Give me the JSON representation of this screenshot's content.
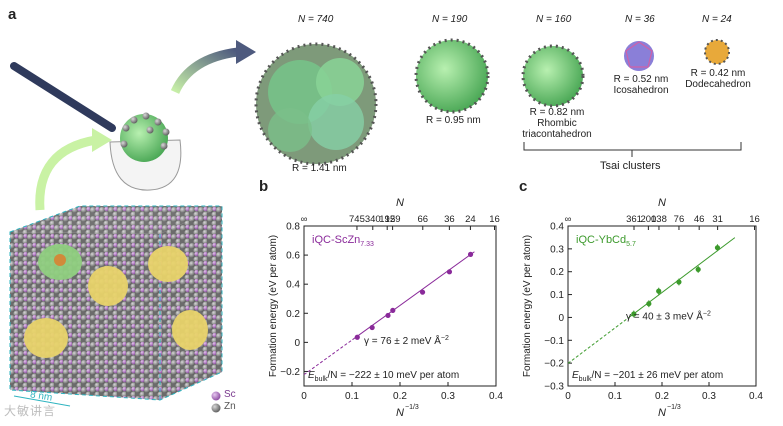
{
  "figure": {
    "panels": [
      "a",
      "b",
      "c"
    ],
    "colors": {
      "sc_atom": "#b27bc4",
      "zn_atom": "#7d7d7d",
      "cluster_green": "#5fc46b",
      "icosa_blue": "#7b87d8",
      "dodeca_orange": "#e8a93a",
      "purple_fit": "#8a2a9a",
      "green_fit": "#3c9a2c",
      "yellow_domain": "#e8d36a"
    }
  },
  "panel_a": {
    "clusters": [
      {
        "n_label": "N = 740",
        "r_label": "R = 1.41 nm"
      },
      {
        "n_label": "N = 190",
        "r_label": "R = 0.95 nm"
      },
      {
        "n_label": "N = 160",
        "r_label": "R = 0.82 nm",
        "name_lines": [
          "Rhombic",
          "triacontahedron"
        ]
      },
      {
        "n_label": "N = 36",
        "r_label": "R = 0.52 nm",
        "name_lines": [
          "Icosahedron"
        ]
      },
      {
        "n_label": "N = 24",
        "r_label": "R = 0.42 nm",
        "name_lines": [
          "Dodecahedron"
        ]
      }
    ],
    "tsai_label": "Tsai clusters",
    "scale_label": "8 nm",
    "legend": [
      {
        "label": "Sc"
      },
      {
        "label": "Zn"
      }
    ],
    "watermark": "大敏讲言"
  },
  "chart_data": [
    {
      "type": "scatter",
      "panel": "b",
      "title": "",
      "series_label": "iQC-ScZn",
      "series_sub": "7.33",
      "top_axis_label": "N",
      "top_ticks": [
        "∞",
        "745",
        "340",
        "192",
        "159",
        "66",
        "36",
        "24",
        "16"
      ],
      "xlabel": "N",
      "xlabel_exp": "−1/3",
      "ylabel": "Formation energy (eV per atom)",
      "xlim": [
        0,
        0.4
      ],
      "ylim": [
        -0.3,
        0.8
      ],
      "x_ticks": [
        "0",
        "0.1",
        "0.2",
        "0.3",
        "0.4"
      ],
      "y_ticks": [
        "−0.2",
        "0",
        "0.2",
        "0.4",
        "0.6",
        "0.8"
      ],
      "points": [
        {
          "x": 0.111,
          "y": 0.035
        },
        {
          "x": 0.142,
          "y": 0.102
        },
        {
          "x": 0.175,
          "y": 0.185
        },
        {
          "x": 0.185,
          "y": 0.22
        },
        {
          "x": 0.247,
          "y": 0.345
        },
        {
          "x": 0.303,
          "y": 0.485
        },
        {
          "x": 0.347,
          "y": 0.605
        }
      ],
      "fit": {
        "intercept": -0.222,
        "slope": 2.38
      },
      "gamma_label": "γ = 76 ± 2 meV Å",
      "gamma_exp": "−2",
      "ebulk_label": "E",
      "ebulk_sub": "bulk",
      "ebulk_rest": "/N = −222 ± 10 meV per atom"
    },
    {
      "type": "scatter",
      "panel": "c",
      "title": "",
      "series_label": "iQC-YbCd",
      "series_sub": "5.7",
      "top_axis_label": "N",
      "top_ticks": [
        "∞",
        "361",
        "200",
        "138",
        "76",
        "46",
        "31",
        "16"
      ],
      "xlabel": "N",
      "xlabel_exp": "−1/3",
      "ylabel": "Formation energy (eV per atom)",
      "xlim": [
        0,
        0.4
      ],
      "ylim": [
        -0.3,
        0.4
      ],
      "x_ticks": [
        "0",
        "0.1",
        "0.2",
        "0.3",
        "0.4"
      ],
      "y_ticks": [
        "−0.3",
        "−0.2",
        "−0.1",
        "0",
        "0.1",
        "0.2",
        "0.3",
        "0.4"
      ],
      "points": [
        {
          "x": 0.14,
          "y": 0.015,
          "err": 0.015
        },
        {
          "x": 0.172,
          "y": 0.06,
          "err": 0.015
        },
        {
          "x": 0.193,
          "y": 0.115,
          "err": 0.015
        },
        {
          "x": 0.236,
          "y": 0.155,
          "err": 0.015
        },
        {
          "x": 0.277,
          "y": 0.21,
          "err": 0.015
        },
        {
          "x": 0.318,
          "y": 0.305,
          "err": 0.015
        }
      ],
      "fit": {
        "intercept": -0.201,
        "slope": 1.55
      },
      "gamma_label": "γ = 40 ± 3 meV Å",
      "gamma_exp": "−2",
      "ebulk_label": "E",
      "ebulk_sub": "bulk",
      "ebulk_rest": "/N = −201 ± 26 meV per atom"
    }
  ]
}
